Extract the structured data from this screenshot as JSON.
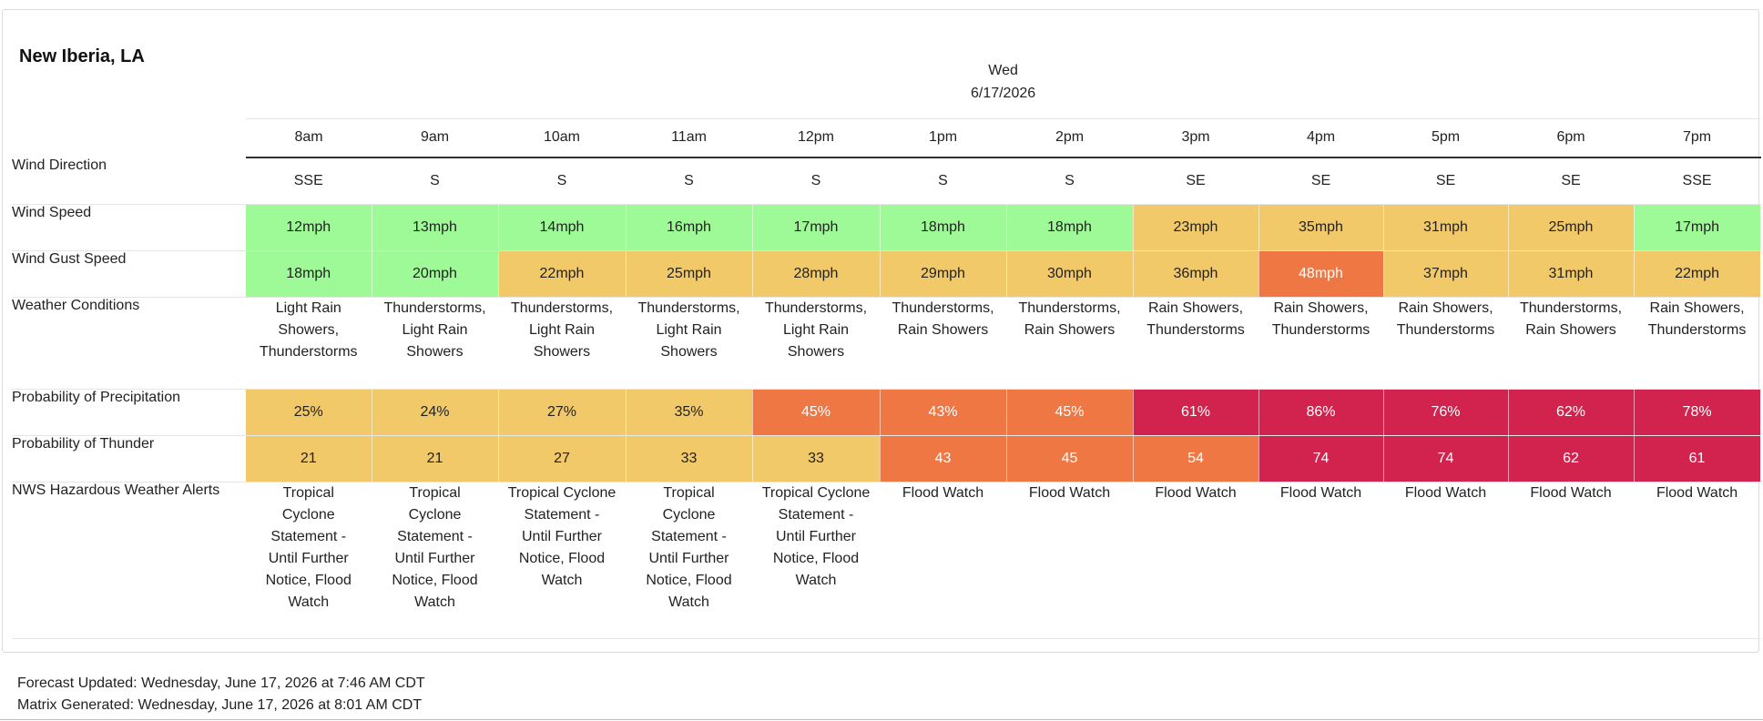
{
  "location": "New Iberia, LA",
  "day": {
    "name": "Wed",
    "date": "6/17/2026"
  },
  "hours": [
    "8am",
    "9am",
    "10am",
    "11am",
    "12pm",
    "1pm",
    "2pm",
    "3pm",
    "4pm",
    "5pm",
    "6pm",
    "7pm"
  ],
  "rows": [
    {
      "label": "Wind Direction",
      "height": "r51",
      "values": [
        "SSE",
        "S",
        "S",
        "S",
        "S",
        "S",
        "S",
        "SE",
        "SE",
        "SE",
        "SE",
        "SSE"
      ],
      "colors": [
        "",
        "",
        "",
        "",
        "",
        "",
        "",
        "",
        "",
        "",
        "",
        ""
      ]
    },
    {
      "label": "Wind Speed",
      "height": "r51",
      "values": [
        "12mph",
        "13mph",
        "14mph",
        "16mph",
        "17mph",
        "18mph",
        "18mph",
        "23mph",
        "35mph",
        "31mph",
        "25mph",
        "17mph"
      ],
      "colors": [
        "green",
        "green",
        "green",
        "green",
        "green",
        "green",
        "green",
        "amber",
        "amber",
        "amber",
        "amber",
        "green"
      ]
    },
    {
      "label": "Wind Gust Speed",
      "height": "r51",
      "values": [
        "18mph",
        "20mph",
        "22mph",
        "25mph",
        "28mph",
        "29mph",
        "30mph",
        "36mph",
        "48mph",
        "37mph",
        "31mph",
        "22mph"
      ],
      "colors": [
        "green",
        "green",
        "amber",
        "amber",
        "amber",
        "amber",
        "amber",
        "amber",
        "orange",
        "amber",
        "amber",
        "amber"
      ]
    },
    {
      "label": "Weather Conditions",
      "height": "r100",
      "multi": true,
      "values": [
        "Light Rain Showers, Thunderstorms",
        "Thunderstorms, Light Rain Showers",
        "Thunderstorms, Light Rain Showers",
        "Thunderstorms, Light Rain Showers",
        "Thunderstorms, Light Rain Showers",
        "Thunderstorms, Rain Showers",
        "Thunderstorms, Rain Showers",
        "Rain Showers, Thunderstorms",
        "Rain Showers, Thunderstorms",
        "Rain Showers, Thunderstorms",
        "Thunderstorms, Rain Showers",
        "Rain Showers, Thunderstorms"
      ],
      "colors": [
        "",
        "",
        "",
        "",
        "",
        "",
        "",
        "",
        "",
        "",
        "",
        ""
      ]
    },
    {
      "label": "Probability of Precipitation",
      "height": "r51",
      "values": [
        "25%",
        "24%",
        "27%",
        "35%",
        "45%",
        "43%",
        "45%",
        "61%",
        "86%",
        "76%",
        "62%",
        "78%"
      ],
      "colors": [
        "amber",
        "amber",
        "amber",
        "amber",
        "orange",
        "orange",
        "orange",
        "red",
        "red",
        "red",
        "red",
        "red"
      ]
    },
    {
      "label": "Probability of Thunder",
      "height": "r51",
      "values": [
        "21",
        "21",
        "27",
        "33",
        "33",
        "43",
        "45",
        "54",
        "74",
        "74",
        "62",
        "61"
      ],
      "colors": [
        "amber",
        "amber",
        "amber",
        "amber",
        "amber",
        "orange",
        "orange",
        "orange",
        "red",
        "red",
        "red",
        "red"
      ]
    },
    {
      "label": "NWS Hazardous Weather Alerts",
      "height": "r172",
      "multi": true,
      "values": [
        "Tropical Cyclone Statement - Until Further Notice, Flood Watch",
        "Tropical Cyclone Statement - Until Further Notice, Flood Watch",
        "Tropical Cyclone Statement - Until Further Notice, Flood Watch",
        "Tropical Cyclone Statement - Until Further Notice, Flood Watch",
        "Tropical Cyclone Statement - Until Further Notice, Flood Watch",
        "Flood Watch",
        "Flood Watch",
        "Flood Watch",
        "Flood Watch",
        "Flood Watch",
        "Flood Watch",
        "Flood Watch"
      ],
      "colors": [
        "",
        "",
        "",
        "",
        "",
        "",
        "",
        "",
        "",
        "",
        "",
        ""
      ]
    }
  ],
  "footer": {
    "forecast_updated": "Forecast Updated: Wednesday, June 17, 2026 at 7:46 AM CDT",
    "matrix_generated": "Matrix Generated: Wednesday, June 17, 2026 at 8:01 AM CDT"
  }
}
